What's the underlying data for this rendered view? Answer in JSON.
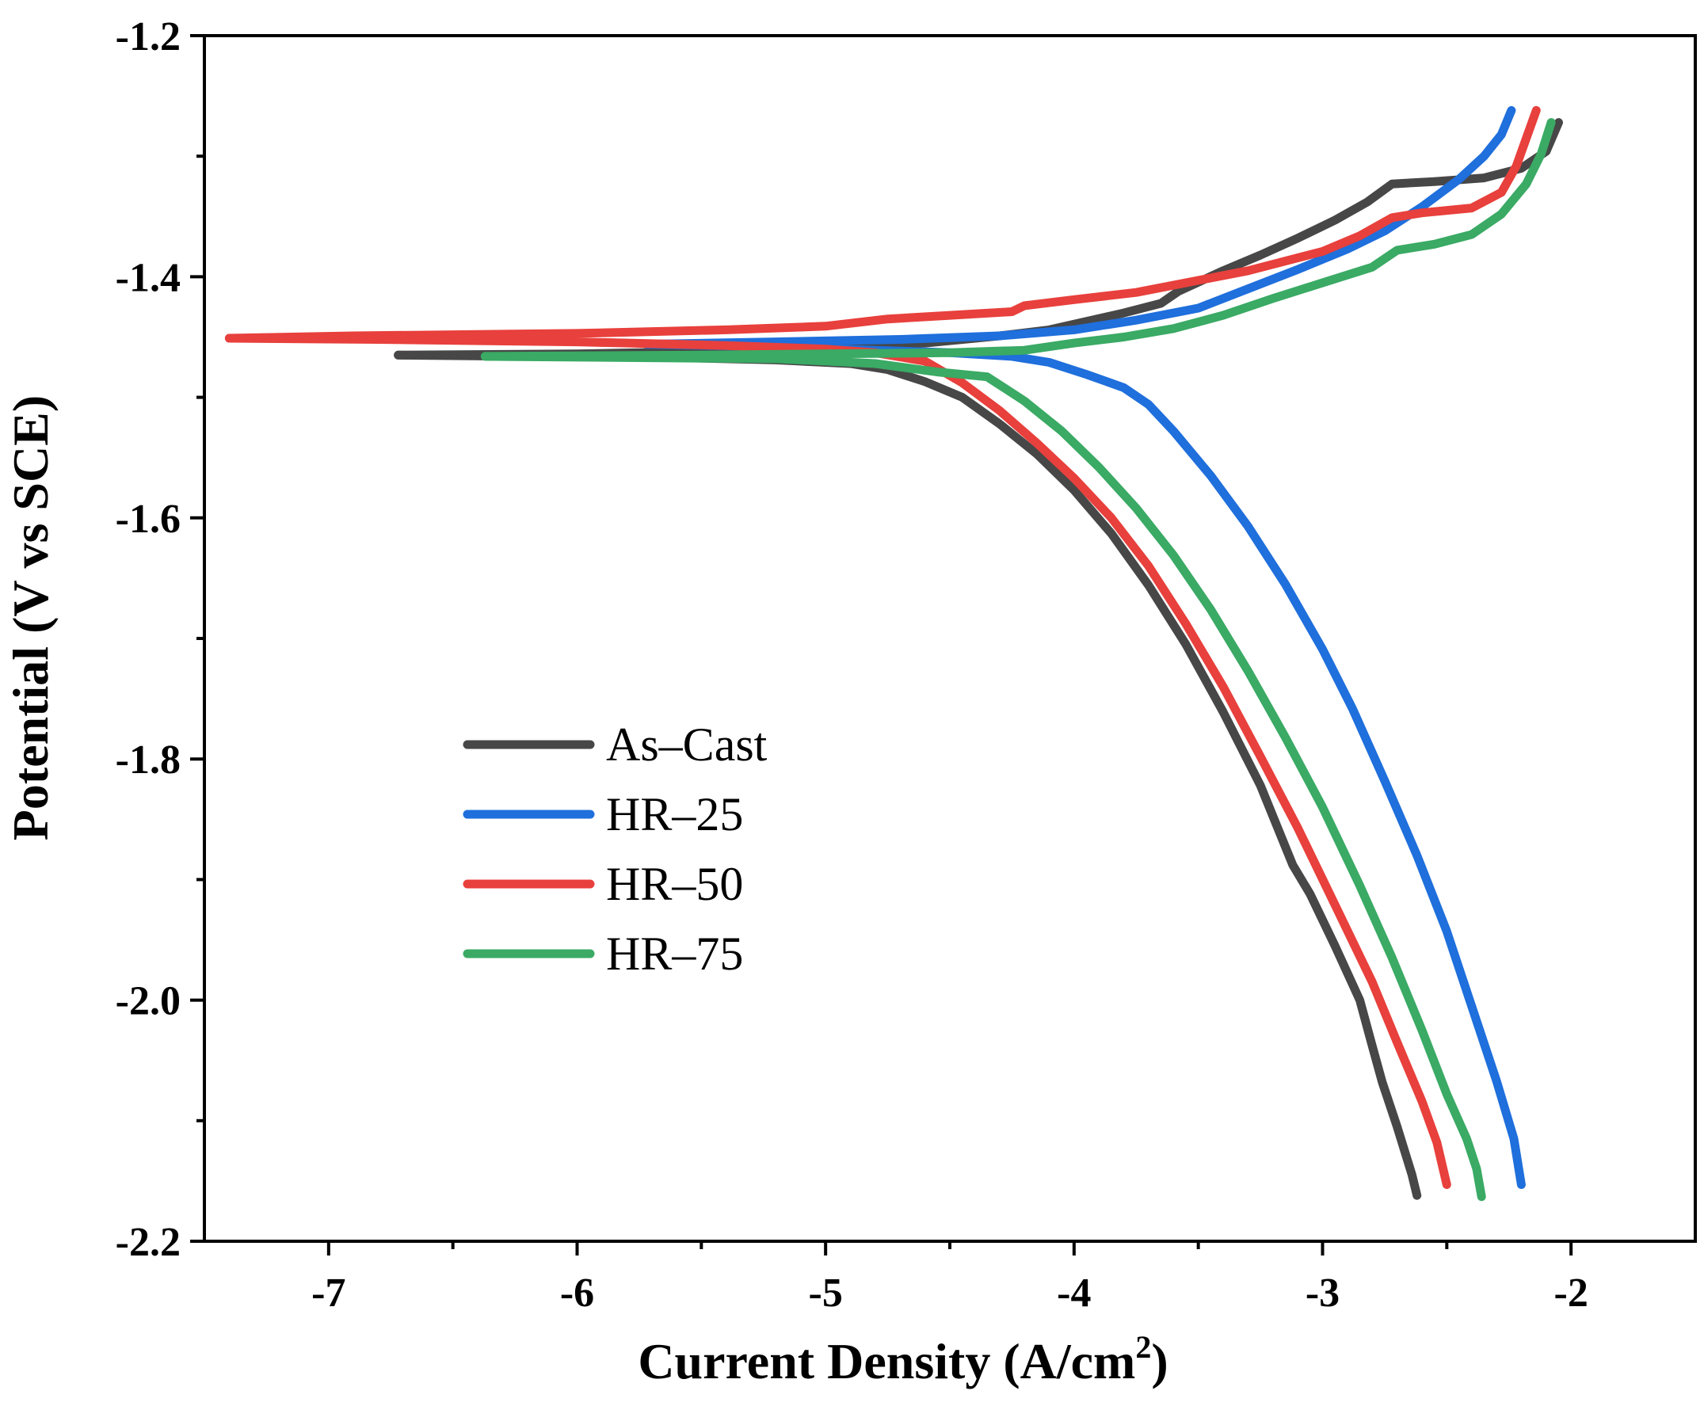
{
  "chart_data": {
    "type": "line",
    "title": "",
    "xlabel": "Current Density (A/cm",
    "xlabel_superscript": "2",
    "xlabel_suffix": ")",
    "ylabel": "Potential (V vs SCE)",
    "xlim": [
      -7.5,
      -1.5
    ],
    "ylim": [
      -2.2,
      -1.2
    ],
    "x_ticks": [
      -7,
      -6,
      -5,
      -4,
      -3,
      -2
    ],
    "x_tick_labels": [
      "-7",
      "-6",
      "-5",
      "-4",
      "-3",
      "-2"
    ],
    "x_minor_ticks": [
      -6.5,
      -5.5,
      -4.5,
      -3.5,
      -2.5
    ],
    "y_ticks": [
      -1.2,
      -1.4,
      -1.6,
      -1.8,
      -2.0,
      -2.2
    ],
    "y_tick_labels": [
      "-1.2",
      "-1.4",
      "-1.6",
      "-1.8",
      "-2.0",
      "-2.2"
    ],
    "y_minor_ticks": [
      -1.3,
      -1.5,
      -1.7,
      -1.9,
      -2.1
    ],
    "grid": false,
    "legend_position": "center-left",
    "series": [
      {
        "name": "As–Cast",
        "color": "#474747",
        "points": [
          [
            -6.72,
            -1.465
          ],
          [
            -6.2,
            -1.466
          ],
          [
            -5.6,
            -1.467
          ],
          [
            -5.2,
            -1.469
          ],
          [
            -4.9,
            -1.472
          ],
          [
            -4.75,
            -1.477
          ],
          [
            -4.6,
            -1.487
          ],
          [
            -4.45,
            -1.5
          ],
          [
            -4.3,
            -1.522
          ],
          [
            -4.15,
            -1.547
          ],
          [
            -4.0,
            -1.577
          ],
          [
            -3.85,
            -1.613
          ],
          [
            -3.7,
            -1.656
          ],
          [
            -3.55,
            -1.705
          ],
          [
            -3.4,
            -1.761
          ],
          [
            -3.25,
            -1.822
          ],
          [
            -3.12,
            -1.888
          ],
          [
            -3.05,
            -1.912
          ],
          [
            -2.95,
            -1.955
          ],
          [
            -2.85,
            -2.0
          ],
          [
            -2.8,
            -2.038
          ],
          [
            -2.76,
            -2.068
          ],
          [
            -2.7,
            -2.105
          ],
          [
            -2.64,
            -2.145
          ],
          [
            -2.62,
            -2.162
          ]
        ],
        "points_anodic": [
          [
            -6.72,
            -1.465
          ],
          [
            -6.0,
            -1.464
          ],
          [
            -5.5,
            -1.462
          ],
          [
            -5.0,
            -1.458
          ],
          [
            -4.6,
            -1.455
          ],
          [
            -4.3,
            -1.449
          ],
          [
            -4.1,
            -1.444
          ],
          [
            -3.95,
            -1.437
          ],
          [
            -3.8,
            -1.43
          ],
          [
            -3.65,
            -1.422
          ],
          [
            -3.58,
            -1.412
          ],
          [
            -3.4,
            -1.395
          ],
          [
            -3.25,
            -1.382
          ],
          [
            -3.1,
            -1.368
          ],
          [
            -2.95,
            -1.353
          ],
          [
            -2.82,
            -1.338
          ],
          [
            -2.72,
            -1.323
          ],
          [
            -2.55,
            -1.321
          ],
          [
            -2.35,
            -1.318
          ],
          [
            -2.2,
            -1.31
          ],
          [
            -2.1,
            -1.296
          ],
          [
            -2.05,
            -1.272
          ]
        ]
      },
      {
        "name": "HR–25",
        "color": "#1f6fdc",
        "points": [
          [
            -5.72,
            -1.456
          ],
          [
            -5.2,
            -1.458
          ],
          [
            -4.8,
            -1.461
          ],
          [
            -4.5,
            -1.463
          ],
          [
            -4.25,
            -1.466
          ],
          [
            -4.1,
            -1.471
          ],
          [
            -3.95,
            -1.481
          ],
          [
            -3.8,
            -1.492
          ],
          [
            -3.7,
            -1.506
          ],
          [
            -3.6,
            -1.528
          ],
          [
            -3.45,
            -1.565
          ],
          [
            -3.3,
            -1.607
          ],
          [
            -3.15,
            -1.655
          ],
          [
            -3.0,
            -1.709
          ],
          [
            -2.88,
            -1.758
          ],
          [
            -2.75,
            -1.818
          ],
          [
            -2.62,
            -1.88
          ],
          [
            -2.5,
            -1.943
          ],
          [
            -2.4,
            -2.005
          ],
          [
            -2.3,
            -2.067
          ],
          [
            -2.23,
            -2.115
          ],
          [
            -2.2,
            -2.153
          ]
        ],
        "points_anodic": [
          [
            -5.72,
            -1.456
          ],
          [
            -5.2,
            -1.454
          ],
          [
            -4.7,
            -1.452
          ],
          [
            -4.3,
            -1.449
          ],
          [
            -4.0,
            -1.444
          ],
          [
            -3.75,
            -1.436
          ],
          [
            -3.5,
            -1.426
          ],
          [
            -3.3,
            -1.41
          ],
          [
            -3.1,
            -1.394
          ],
          [
            -2.9,
            -1.377
          ],
          [
            -2.75,
            -1.362
          ],
          [
            -2.6,
            -1.342
          ],
          [
            -2.45,
            -1.319
          ],
          [
            -2.35,
            -1.3
          ],
          [
            -2.28,
            -1.282
          ],
          [
            -2.24,
            -1.262
          ]
        ]
      },
      {
        "name": "HR–50",
        "color": "#e8403c",
        "points": [
          [
            -7.4,
            -1.451
          ],
          [
            -6.8,
            -1.452
          ],
          [
            -6.0,
            -1.454
          ],
          [
            -5.4,
            -1.457
          ],
          [
            -5.0,
            -1.46
          ],
          [
            -4.8,
            -1.463
          ],
          [
            -4.6,
            -1.47
          ],
          [
            -4.45,
            -1.488
          ],
          [
            -4.3,
            -1.511
          ],
          [
            -4.15,
            -1.538
          ],
          [
            -4.0,
            -1.567
          ],
          [
            -3.85,
            -1.6
          ],
          [
            -3.7,
            -1.64
          ],
          [
            -3.55,
            -1.688
          ],
          [
            -3.4,
            -1.74
          ],
          [
            -3.25,
            -1.798
          ],
          [
            -3.1,
            -1.857
          ],
          [
            -2.95,
            -1.921
          ],
          [
            -2.8,
            -1.985
          ],
          [
            -2.7,
            -2.035
          ],
          [
            -2.6,
            -2.084
          ],
          [
            -2.54,
            -2.118
          ],
          [
            -2.5,
            -2.153
          ]
        ],
        "points_anodic": [
          [
            -7.4,
            -1.451
          ],
          [
            -6.9,
            -1.449
          ],
          [
            -6.0,
            -1.447
          ],
          [
            -5.4,
            -1.444
          ],
          [
            -5.0,
            -1.441
          ],
          [
            -4.75,
            -1.435
          ],
          [
            -4.5,
            -1.432
          ],
          [
            -4.25,
            -1.429
          ],
          [
            -4.2,
            -1.424
          ],
          [
            -4.0,
            -1.419
          ],
          [
            -3.75,
            -1.413
          ],
          [
            -3.55,
            -1.405
          ],
          [
            -3.3,
            -1.395
          ],
          [
            -3.0,
            -1.379
          ],
          [
            -2.85,
            -1.366
          ],
          [
            -2.72,
            -1.351
          ],
          [
            -2.6,
            -1.347
          ],
          [
            -2.4,
            -1.343
          ],
          [
            -2.28,
            -1.33
          ],
          [
            -2.22,
            -1.308
          ],
          [
            -2.18,
            -1.285
          ],
          [
            -2.14,
            -1.262
          ]
        ]
      },
      {
        "name": "HR–75",
        "color": "#3aaa64",
        "points": [
          [
            -6.37,
            -1.466
          ],
          [
            -5.8,
            -1.467
          ],
          [
            -5.2,
            -1.468
          ],
          [
            -4.8,
            -1.472
          ],
          [
            -4.55,
            -1.479
          ],
          [
            -4.35,
            -1.483
          ],
          [
            -4.2,
            -1.503
          ],
          [
            -4.05,
            -1.528
          ],
          [
            -3.9,
            -1.558
          ],
          [
            -3.75,
            -1.592
          ],
          [
            -3.6,
            -1.631
          ],
          [
            -3.45,
            -1.676
          ],
          [
            -3.3,
            -1.727
          ],
          [
            -3.15,
            -1.782
          ],
          [
            -3.0,
            -1.84
          ],
          [
            -2.85,
            -1.905
          ],
          [
            -2.72,
            -1.965
          ],
          [
            -2.6,
            -2.025
          ],
          [
            -2.5,
            -2.078
          ],
          [
            -2.42,
            -2.115
          ],
          [
            -2.38,
            -2.14
          ],
          [
            -2.36,
            -2.163
          ]
        ],
        "points_anodic": [
          [
            -6.37,
            -1.466
          ],
          [
            -5.5,
            -1.465
          ],
          [
            -5.0,
            -1.464
          ],
          [
            -4.5,
            -1.463
          ],
          [
            -4.2,
            -1.461
          ],
          [
            -4.0,
            -1.455
          ],
          [
            -3.8,
            -1.45
          ],
          [
            -3.6,
            -1.443
          ],
          [
            -3.4,
            -1.432
          ],
          [
            -3.2,
            -1.418
          ],
          [
            -3.0,
            -1.405
          ],
          [
            -2.8,
            -1.392
          ],
          [
            -2.7,
            -1.378
          ],
          [
            -2.55,
            -1.373
          ],
          [
            -2.4,
            -1.365
          ],
          [
            -2.28,
            -1.348
          ],
          [
            -2.18,
            -1.323
          ],
          [
            -2.12,
            -1.298
          ],
          [
            -2.08,
            -1.272
          ]
        ]
      }
    ]
  }
}
